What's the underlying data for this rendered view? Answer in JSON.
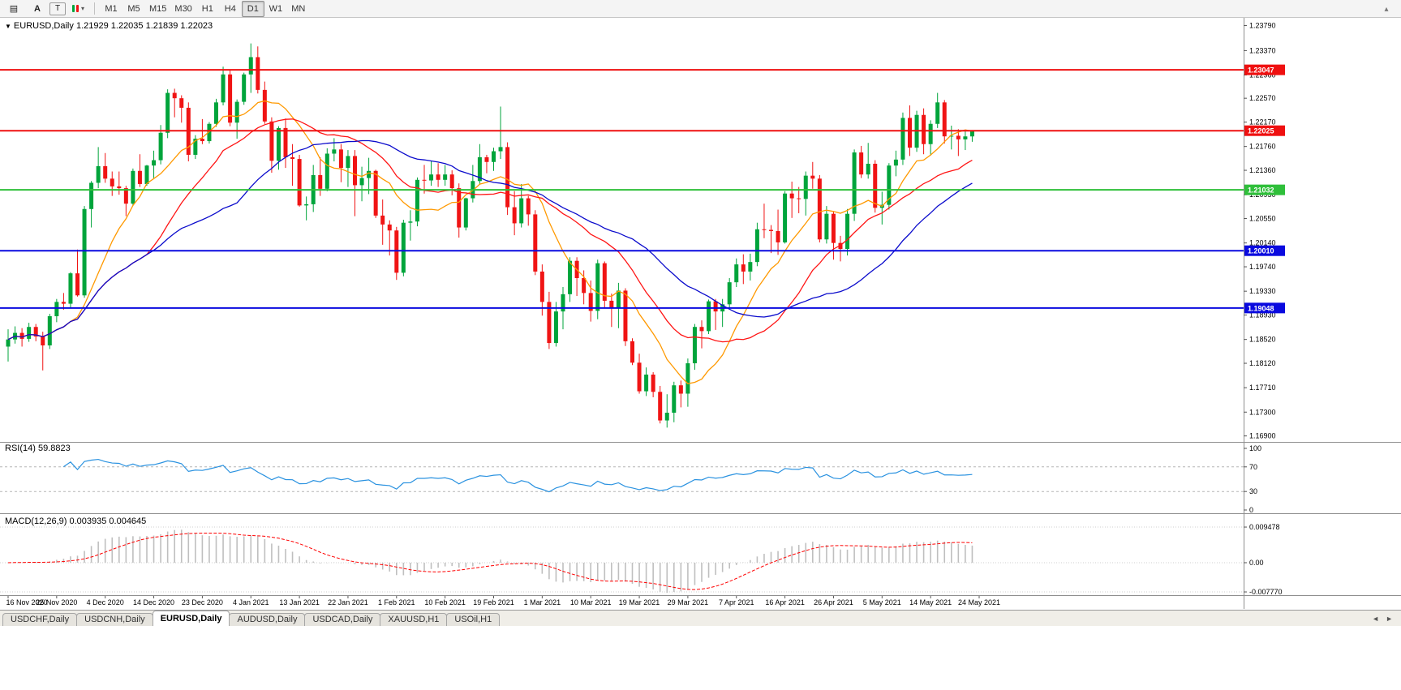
{
  "toolbar": {
    "menu_icon_glyph": "▤",
    "font_icon_glyph": "A",
    "text_icon_glyph": "T",
    "drawing_dropdown_glyph": "▾",
    "collapse_icon_glyph": "▴",
    "timeframes": [
      "M1",
      "M5",
      "M15",
      "M30",
      "H1",
      "H4",
      "D1",
      "W1",
      "MN"
    ],
    "active_timeframe": "D1"
  },
  "chart_header": {
    "dropdown_glyph": "▼",
    "symbol_label": "EURUSD,Daily",
    "ohlc_text": "1.21929 1.22035 1.21839 1.22023"
  },
  "chart_data": {
    "type": "candlestick",
    "symbol": "EURUSD",
    "timeframe": "Daily",
    "current_ohlc": {
      "open": 1.21929,
      "high": 1.22035,
      "low": 1.21839,
      "close": 1.22023
    },
    "y_range": [
      1.168,
      1.2392
    ],
    "price_axis_ticks": [
      1.2379,
      1.2337,
      1.2296,
      1.2257,
      1.2217,
      1.2176,
      1.2136,
      1.2095,
      1.2055,
      1.2014,
      1.1974,
      1.1933,
      1.1893,
      1.1852,
      1.1812,
      1.1771,
      1.173,
      1.169
    ],
    "horizontal_lines": [
      {
        "price": 1.23047,
        "color": "#ef1010",
        "label": "1.23047"
      },
      {
        "price": 1.22025,
        "color": "#ef1010",
        "label": "1.22025"
      },
      {
        "price": 1.21032,
        "color": "#2fbf3a",
        "label": "1.21032"
      },
      {
        "price": 1.2001,
        "color": "#0a0adf",
        "label": "1.20010"
      },
      {
        "price": 1.19048,
        "color": "#0a0adf",
        "label": "1.19048"
      }
    ],
    "moving_averages": [
      {
        "period": 10,
        "color": "#ff9900"
      },
      {
        "period": 21,
        "color": "#ff1515"
      },
      {
        "period": 34,
        "color": "#0b0bcc"
      }
    ],
    "colors": {
      "up": "#00a43b",
      "down": "#f01414",
      "background": "#ffffff"
    },
    "date_labels": [
      "16 Nov 2020",
      "25 Nov 2020",
      "4 Dec 2020",
      "14 Dec 2020",
      "23 Dec 2020",
      "4 Jan 2021",
      "13 Jan 2021",
      "22 Jan 2021",
      "1 Feb 2021",
      "10 Feb 2021",
      "19 Feb 2021",
      "1 Mar 2021",
      "10 Mar 2021",
      "19 Mar 2021",
      "29 Mar 2021",
      "7 Apr 2021",
      "16 Apr 2021",
      "26 Apr 2021",
      "5 May 2021",
      "14 May 2021",
      "24 May 2021"
    ],
    "candles": [
      [
        1.184,
        1.1869,
        1.1815,
        1.1852
      ],
      [
        1.1852,
        1.1874,
        1.1845,
        1.1863
      ],
      [
        1.1863,
        1.1871,
        1.184,
        1.1853
      ],
      [
        1.1853,
        1.188,
        1.1848,
        1.1873
      ],
      [
        1.1873,
        1.1878,
        1.1849,
        1.1857
      ],
      [
        1.1857,
        1.1865,
        1.18,
        1.1842
      ],
      [
        1.1842,
        1.1895,
        1.1836,
        1.1891
      ],
      [
        1.1891,
        1.192,
        1.1881,
        1.1915
      ],
      [
        1.1915,
        1.193,
        1.1902,
        1.1912
      ],
      [
        1.1912,
        1.1965,
        1.1905,
        1.1963
      ],
      [
        1.1963,
        1.2003,
        1.1924,
        1.1926
      ],
      [
        1.1926,
        1.2076,
        1.1922,
        1.2071
      ],
      [
        1.2071,
        1.2118,
        1.204,
        1.2115
      ],
      [
        1.2115,
        1.2175,
        1.2106,
        1.2143
      ],
      [
        1.2143,
        1.2165,
        1.2115,
        1.2122
      ],
      [
        1.2122,
        1.2134,
        1.2093,
        1.2109
      ],
      [
        1.2109,
        1.2134,
        1.2095,
        1.2106
      ],
      [
        1.2106,
        1.211,
        1.2059,
        1.208
      ],
      [
        1.208,
        1.2139,
        1.2076,
        1.2135
      ],
      [
        1.2135,
        1.2163,
        1.2108,
        1.2113
      ],
      [
        1.2113,
        1.2145,
        1.211,
        1.2144
      ],
      [
        1.2144,
        1.2169,
        1.2123,
        1.2153
      ],
      [
        1.2153,
        1.2212,
        1.2146,
        1.2199
      ],
      [
        1.2199,
        1.2272,
        1.219,
        1.2266
      ],
      [
        1.2266,
        1.2273,
        1.2225,
        1.2257
      ],
      [
        1.2257,
        1.2262,
        1.2216,
        1.2241
      ],
      [
        1.2241,
        1.225,
        1.2151,
        1.2162
      ],
      [
        1.2162,
        1.2195,
        1.2155,
        1.2189
      ],
      [
        1.2189,
        1.2222,
        1.218,
        1.2185
      ],
      [
        1.2185,
        1.2217,
        1.2181,
        1.2214
      ],
      [
        1.2214,
        1.2256,
        1.2209,
        1.225
      ],
      [
        1.225,
        1.231,
        1.2245,
        1.2297
      ],
      [
        1.2297,
        1.2304,
        1.221,
        1.2216
      ],
      [
        1.2216,
        1.2255,
        1.2189,
        1.2251
      ],
      [
        1.2251,
        1.23,
        1.2246,
        1.2297
      ],
      [
        1.2297,
        1.2349,
        1.2266,
        1.2326
      ],
      [
        1.2326,
        1.2344,
        1.2265,
        1.2271
      ],
      [
        1.2271,
        1.2285,
        1.2214,
        1.2218
      ],
      [
        1.2218,
        1.2225,
        1.2132,
        1.2152
      ],
      [
        1.2152,
        1.221,
        1.2137,
        1.2207
      ],
      [
        1.2207,
        1.2223,
        1.214,
        1.2158
      ],
      [
        1.2158,
        1.218,
        1.211,
        1.2155
      ],
      [
        1.2155,
        1.2162,
        1.2075,
        1.2077
      ],
      [
        1.2077,
        1.2092,
        1.2052,
        1.2079
      ],
      [
        1.2079,
        1.2145,
        1.2066,
        1.2128
      ],
      [
        1.2128,
        1.2158,
        1.2093,
        1.2105
      ],
      [
        1.2105,
        1.2173,
        1.2101,
        1.2164
      ],
      [
        1.2164,
        1.219,
        1.2151,
        1.2171
      ],
      [
        1.2171,
        1.218,
        1.2116,
        1.214
      ],
      [
        1.214,
        1.217,
        1.2108,
        1.216
      ],
      [
        1.216,
        1.217,
        1.2059,
        1.2111
      ],
      [
        1.2111,
        1.2142,
        1.2084,
        1.2123
      ],
      [
        1.2123,
        1.2157,
        1.2096,
        1.2135
      ],
      [
        1.2135,
        1.2137,
        1.2056,
        1.206
      ],
      [
        1.206,
        1.2087,
        1.2011,
        1.2045
      ],
      [
        1.2045,
        1.2052,
        1.1993,
        1.2035
      ],
      [
        1.2035,
        1.2041,
        1.1952,
        1.1964
      ],
      [
        1.1964,
        1.2053,
        1.1958,
        1.2048
      ],
      [
        1.2048,
        1.2069,
        1.2018,
        1.205
      ],
      [
        1.205,
        1.2124,
        1.2042,
        1.212
      ],
      [
        1.212,
        1.2145,
        1.2097,
        1.2119
      ],
      [
        1.2119,
        1.2152,
        1.211,
        1.2129
      ],
      [
        1.2129,
        1.2148,
        1.2108,
        1.212
      ],
      [
        1.212,
        1.2145,
        1.211,
        1.2129
      ],
      [
        1.2129,
        1.2136,
        1.2094,
        1.2106
      ],
      [
        1.2106,
        1.2114,
        1.2023,
        1.204
      ],
      [
        1.204,
        1.209,
        1.2035,
        1.2089
      ],
      [
        1.2089,
        1.2145,
        1.2082,
        1.2118
      ],
      [
        1.2118,
        1.218,
        1.2112,
        1.2158
      ],
      [
        1.2158,
        1.2162,
        1.2131,
        1.215
      ],
      [
        1.215,
        1.2174,
        1.2135,
        1.2168
      ],
      [
        1.2168,
        1.2243,
        1.2155,
        1.2175
      ],
      [
        1.2175,
        1.2183,
        1.2061,
        1.2074
      ],
      [
        1.2074,
        1.2101,
        1.2027,
        1.2047
      ],
      [
        1.2047,
        1.2113,
        1.204,
        1.2089
      ],
      [
        1.2089,
        1.2093,
        1.2043,
        1.2062
      ],
      [
        1.2062,
        1.2069,
        1.196,
        1.1966
      ],
      [
        1.1966,
        1.1978,
        1.1892,
        1.1915
      ],
      [
        1.1915,
        1.1932,
        1.1836,
        1.1846
      ],
      [
        1.1846,
        1.1915,
        1.184,
        1.1899
      ],
      [
        1.1899,
        1.194,
        1.1869,
        1.1928
      ],
      [
        1.1928,
        1.199,
        1.1915,
        1.1984
      ],
      [
        1.1984,
        1.199,
        1.1925,
        1.1955
      ],
      [
        1.1955,
        1.1968,
        1.1911,
        1.193
      ],
      [
        1.193,
        1.1951,
        1.1882,
        1.19
      ],
      [
        1.19,
        1.1986,
        1.1886,
        1.198
      ],
      [
        1.198,
        1.1983,
        1.1906,
        1.1917
      ],
      [
        1.1917,
        1.1929,
        1.1873,
        1.1904
      ],
      [
        1.1904,
        1.1947,
        1.1871,
        1.1934
      ],
      [
        1.1934,
        1.1938,
        1.1841,
        1.1849
      ],
      [
        1.1849,
        1.1854,
        1.1809,
        1.1813
      ],
      [
        1.1813,
        1.1828,
        1.1761,
        1.1765
      ],
      [
        1.1765,
        1.1805,
        1.1757,
        1.1793
      ],
      [
        1.1793,
        1.1797,
        1.1755,
        1.1764
      ],
      [
        1.1764,
        1.1774,
        1.1711,
        1.1716
      ],
      [
        1.1716,
        1.176,
        1.1704,
        1.1729
      ],
      [
        1.1729,
        1.1781,
        1.1713,
        1.1775
      ],
      [
        1.1775,
        1.1783,
        1.1738,
        1.1761
      ],
      [
        1.1761,
        1.182,
        1.1739,
        1.1812
      ],
      [
        1.1812,
        1.1878,
        1.1801,
        1.1873
      ],
      [
        1.1873,
        1.1884,
        1.1837,
        1.1866
      ],
      [
        1.1866,
        1.1919,
        1.1861,
        1.1916
      ],
      [
        1.1916,
        1.192,
        1.1868,
        1.1899
      ],
      [
        1.1899,
        1.192,
        1.1873,
        1.1911
      ],
      [
        1.1911,
        1.1955,
        1.1903,
        1.1948
      ],
      [
        1.1948,
        1.1988,
        1.194,
        1.1978
      ],
      [
        1.1978,
        1.1995,
        1.1945,
        1.1966
      ],
      [
        1.1966,
        1.1996,
        1.1951,
        1.1982
      ],
      [
        1.1982,
        1.2048,
        1.1975,
        1.2037
      ],
      [
        1.2037,
        1.208,
        1.2022,
        1.2036
      ],
      [
        1.2036,
        1.2044,
        1.1997,
        1.2034
      ],
      [
        1.2034,
        1.207,
        1.1994,
        1.2015
      ],
      [
        1.2015,
        1.2101,
        1.2013,
        1.2097
      ],
      [
        1.2097,
        1.2117,
        1.2056,
        1.2089
      ],
      [
        1.2089,
        1.2108,
        1.2064,
        1.2088
      ],
      [
        1.2088,
        1.2134,
        1.206,
        1.2127
      ],
      [
        1.2127,
        1.215,
        1.2105,
        1.2122
      ],
      [
        1.2122,
        1.2128,
        1.2015,
        1.202
      ],
      [
        1.202,
        1.2076,
        1.2013,
        1.2063
      ],
      [
        1.2063,
        1.2067,
        1.1986,
        1.2014
      ],
      [
        1.2014,
        1.2026,
        1.1983,
        1.2004
      ],
      [
        1.2004,
        1.2071,
        1.1993,
        1.2063
      ],
      [
        1.2063,
        1.2171,
        1.2051,
        1.2166
      ],
      [
        1.2166,
        1.2177,
        1.2123,
        1.2129
      ],
      [
        1.2129,
        1.2182,
        1.2122,
        1.2147
      ],
      [
        1.2147,
        1.2153,
        1.2065,
        1.2073
      ],
      [
        1.2073,
        1.21,
        1.2045,
        1.2078
      ],
      [
        1.2078,
        1.2148,
        1.207,
        1.2144
      ],
      [
        1.2144,
        1.2169,
        1.2126,
        1.2154
      ],
      [
        1.2154,
        1.2233,
        1.2145,
        1.2224
      ],
      [
        1.2224,
        1.2245,
        1.216,
        1.2174
      ],
      [
        1.2174,
        1.2236,
        1.2167,
        1.2229
      ],
      [
        1.2229,
        1.224,
        1.2163,
        1.218
      ],
      [
        1.218,
        1.222,
        1.2161,
        1.2214
      ],
      [
        1.2214,
        1.2266,
        1.2207,
        1.225
      ],
      [
        1.225,
        1.2254,
        1.2181,
        1.2193
      ],
      [
        1.2193,
        1.2211,
        1.2171,
        1.2194
      ],
      [
        1.2194,
        1.2205,
        1.216,
        1.2188
      ],
      [
        1.2188,
        1.2202,
        1.217,
        1.21929
      ],
      [
        1.21929,
        1.22035,
        1.21839,
        1.22023
      ]
    ],
    "rsi": {
      "label": "RSI(14) 59.8823",
      "period": 14,
      "axis_labels": [
        100,
        70,
        30,
        0
      ],
      "dashed_levels": [
        70,
        30
      ],
      "color": "#2a92e0"
    },
    "macd": {
      "label": "MACD(12,26,9) 0.003935 0.004645",
      "fast": 12,
      "slow": 26,
      "signal": 9,
      "macd_value": 0.003935,
      "signal_value": 0.004645,
      "axis_levels": [
        {
          "value": 0.009478,
          "label": "0.009478"
        },
        {
          "value": 0,
          "label": "0.00"
        },
        {
          "value": -0.00777,
          "label": "-0.007770"
        }
      ],
      "histogram_color": "#bfbfbf",
      "signal_color": "#ff0000"
    }
  },
  "tabs": {
    "items": [
      "USDCHF,Daily",
      "USDCNH,Daily",
      "EURUSD,Daily",
      "AUDUSD,Daily",
      "USDCAD,Daily",
      "XAUUSD,H1",
      "USOil,H1"
    ],
    "active": "EURUSD,Daily",
    "scroll_left_glyph": "◄",
    "scroll_right_glyph": "►"
  }
}
